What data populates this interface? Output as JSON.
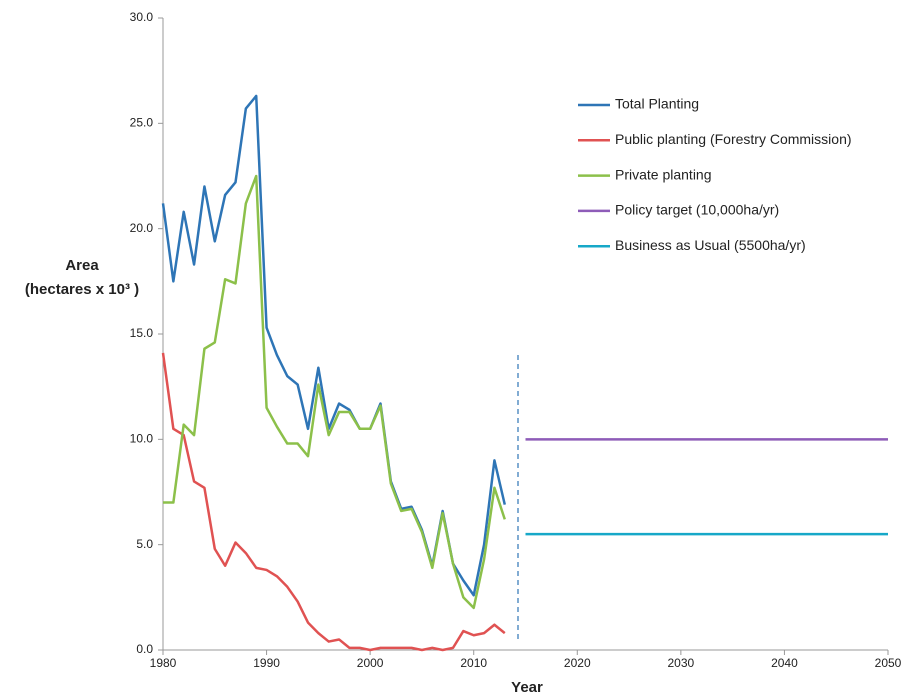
{
  "chart_data": {
    "type": "line",
    "x_label": "Year",
    "y_label": "Area",
    "y_label_2": "(hectares x 10³ )",
    "x": [
      1980,
      1981,
      1982,
      1983,
      1984,
      1985,
      1986,
      1987,
      1988,
      1989,
      1990,
      1991,
      1992,
      1993,
      1994,
      1995,
      1996,
      1997,
      1998,
      1999,
      2000,
      2001,
      2002,
      2003,
      2004,
      2005,
      2006,
      2007,
      2008,
      2009,
      2010,
      2011,
      2012,
      2013
    ],
    "series": [
      {
        "name": "Total Planting",
        "color": "#2e75b6",
        "values": [
          21.2,
          17.5,
          20.8,
          18.3,
          22.0,
          19.4,
          21.6,
          22.2,
          25.7,
          26.3,
          15.3,
          14.0,
          13.0,
          12.6,
          10.5,
          13.4,
          10.5,
          11.7,
          11.4,
          10.5,
          10.5,
          11.7,
          8.0,
          6.7,
          6.8,
          5.7,
          4.0,
          6.6,
          4.1,
          3.3,
          2.6,
          5.0,
          9.0,
          6.9
        ]
      },
      {
        "name": "Public planting (Forestry Commission)",
        "color": "#e05252",
        "values": [
          14.1,
          10.5,
          10.2,
          8.0,
          7.7,
          4.8,
          4.0,
          5.1,
          4.6,
          3.9,
          3.8,
          3.5,
          3.0,
          2.3,
          1.3,
          0.8,
          0.4,
          0.5,
          0.1,
          0.1,
          0.0,
          0.1,
          0.1,
          0.1,
          0.1,
          0.0,
          0.1,
          0.0,
          0.1,
          0.9,
          0.7,
          0.8,
          1.2,
          0.8
        ]
      },
      {
        "name": "Private planting",
        "color": "#8cc04a",
        "values": [
          7.0,
          7.0,
          10.7,
          10.2,
          14.3,
          14.6,
          17.6,
          17.4,
          21.2,
          22.5,
          11.5,
          10.6,
          9.8,
          9.8,
          9.2,
          12.6,
          10.2,
          11.3,
          11.3,
          10.5,
          10.5,
          11.6,
          7.9,
          6.6,
          6.7,
          5.6,
          3.9,
          6.5,
          4.1,
          2.5,
          2.0,
          4.3,
          7.7,
          6.2
        ]
      },
      {
        "name": "Policy  target (10,000ha/yr)",
        "color": "#8e5cb8",
        "x": [
          2015,
          2050
        ],
        "values": [
          10.0,
          10.0
        ]
      },
      {
        "name": "Business as Usual (5500ha/yr)",
        "color": "#17a8c8",
        "x": [
          2015,
          2050
        ],
        "values": [
          5.5,
          5.5
        ]
      }
    ],
    "xlim": [
      1980,
      2050
    ],
    "xticks": [
      1980,
      1990,
      2000,
      2010,
      2020,
      2030,
      2040,
      2050
    ],
    "ylim": [
      0,
      30
    ],
    "yticks": [
      {
        "value": 0,
        "label": "0.0"
      },
      {
        "value": 5,
        "label": "5.0"
      },
      {
        "value": 10,
        "label": "10.0"
      },
      {
        "value": 15,
        "label": "15.0"
      },
      {
        "value": 20,
        "label": "20.0"
      },
      {
        "value": 25,
        "label": "25.0"
      },
      {
        "value": 30,
        "label": "30.0"
      }
    ],
    "grid": false,
    "legend": "upper right"
  }
}
